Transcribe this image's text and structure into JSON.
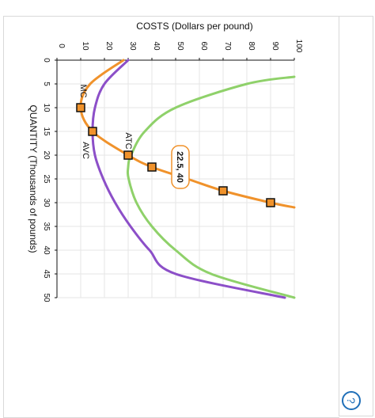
{
  "chart_data": {
    "type": "line",
    "xlabel": "QUANTITY (Thousands of pounds)",
    "ylabel": "COSTS (Dollars per pound)",
    "xlim": [
      0,
      50
    ],
    "ylim": [
      0,
      100
    ],
    "x_ticks": [
      "0",
      "5",
      "10",
      "15",
      "20",
      "25",
      "30",
      "35",
      "40",
      "45",
      "50"
    ],
    "y_ticks": [
      "0",
      "10",
      "20",
      "30",
      "40",
      "50",
      "60",
      "70",
      "80",
      "90",
      "100"
    ],
    "grid": true,
    "orientation": "rotated 90 degrees clockwise",
    "series": [
      {
        "name": "MC",
        "color": "#f0922b",
        "x": [
          0,
          5,
          10,
          15,
          20,
          22.5,
          25,
          27.5,
          30,
          31
        ],
        "y": [
          28,
          14,
          10,
          15,
          30,
          40,
          55,
          70,
          90,
          100
        ],
        "markers": [
          {
            "x": 10,
            "y": 10
          },
          {
            "x": 15,
            "y": 15
          },
          {
            "x": 20,
            "y": 30
          },
          {
            "x": 22.5,
            "y": 40
          },
          {
            "x": 27.5,
            "y": 70
          },
          {
            "x": 30,
            "y": 90
          }
        ]
      },
      {
        "name": "AVC",
        "color": "#8c4fc8",
        "x": [
          0,
          5,
          10,
          15,
          20,
          25,
          30,
          35,
          40,
          45,
          50
        ],
        "y": [
          30,
          20,
          16,
          15,
          16,
          19.5,
          24.5,
          31,
          39,
          50,
          96
        ]
      },
      {
        "name": "ATC",
        "color": "#8fd16a",
        "x": [
          3.5,
          5,
          10,
          15,
          20,
          22.5,
          25,
          30,
          35,
          40,
          45,
          50
        ],
        "y": [
          100,
          80,
          50,
          37,
          31.2,
          30,
          30.2,
          33.5,
          40,
          50,
          65,
          100
        ]
      }
    ],
    "annotations": [
      {
        "text": "MC",
        "series": "MC"
      },
      {
        "text": "AVC",
        "series": "AVC"
      },
      {
        "text": "ATC",
        "series": "ATC"
      },
      {
        "text": "22.5, 40",
        "x": 22.5,
        "y": 40
      }
    ]
  },
  "help_button": {
    "icon": "help-icon",
    "label": "?"
  }
}
